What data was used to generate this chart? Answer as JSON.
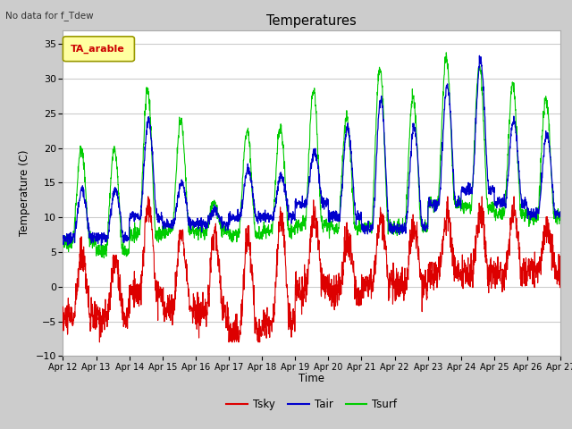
{
  "title": "Temperatures",
  "subtitle": "No data for f_Tdew",
  "xlabel": "Time",
  "ylabel": "Temperature (C)",
  "ylim": [
    -10,
    37
  ],
  "yticks": [
    -10,
    -5,
    0,
    5,
    10,
    15,
    20,
    25,
    30,
    35
  ],
  "legend_label": "TA_arable",
  "legend_text_color": "#cc0000",
  "legend_box_facecolor": "#ffffa0",
  "legend_box_edgecolor": "#999900",
  "line_tsky_color": "#dd0000",
  "line_tair_color": "#0000cc",
  "line_tsurf_color": "#00cc00",
  "fig_bg_color": "#cccccc",
  "plot_bg_color": "#ffffff",
  "grid_color": "#cccccc",
  "date_labels": [
    "Apr 12",
    "Apr 13",
    "Apr 14",
    "Apr 15",
    "Apr 16",
    "Apr 17",
    "Apr 18",
    "Apr 19",
    "Apr 20",
    "Apr 21",
    "Apr 22",
    "Apr 23",
    "Apr 24",
    "Apr 25",
    "Apr 26",
    "Apr 27"
  ],
  "n_days": 15,
  "points_per_day": 144
}
